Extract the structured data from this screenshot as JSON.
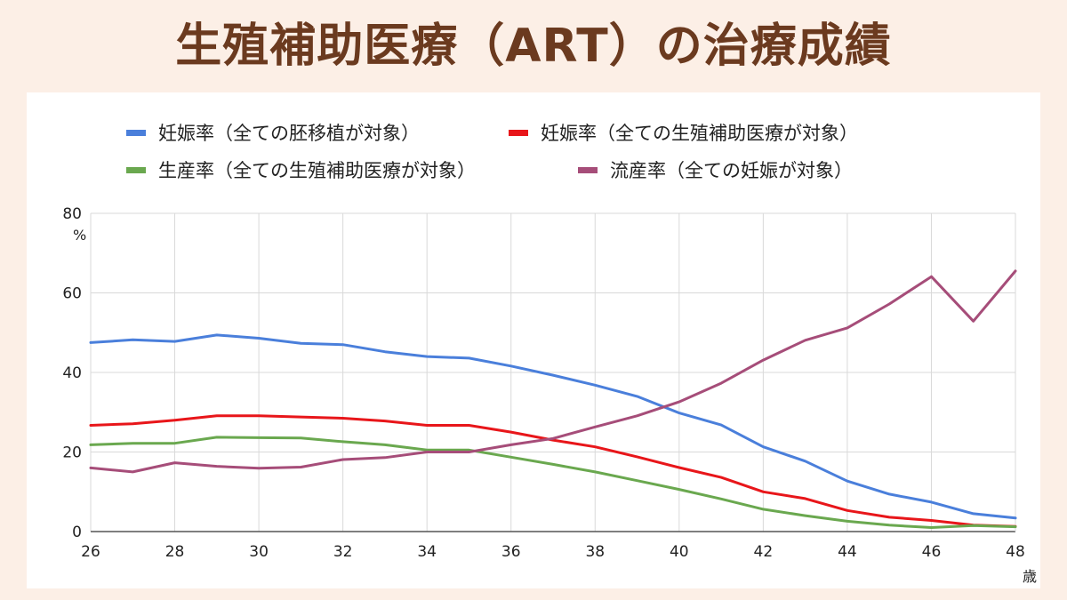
{
  "title": "生殖補助医療（ART）の治療成績",
  "chart_data": {
    "type": "line",
    "x": [
      26,
      27,
      28,
      29,
      30,
      31,
      32,
      33,
      34,
      35,
      36,
      37,
      38,
      39,
      40,
      41,
      42,
      43,
      44,
      45,
      46,
      47,
      48
    ],
    "xticks": [
      "26",
      "28",
      "30",
      "32",
      "34",
      "36",
      "38",
      "40",
      "42",
      "44",
      "46",
      "48"
    ],
    "xlabel": "歳",
    "ylabel": "%",
    "yticks": [
      "0",
      "20",
      "40",
      "60",
      "80"
    ],
    "xlim": [
      26,
      48
    ],
    "ylim": [
      0,
      80
    ],
    "grid": true,
    "legend_position": "top",
    "series": [
      {
        "name": "妊娠率（全ての胚移植が対象）",
        "color": "#4a7fdb",
        "values": [
          47.5,
          48.2,
          47.8,
          49.4,
          48.6,
          47.3,
          47.0,
          45.2,
          44.0,
          43.6,
          41.6,
          39.3,
          36.8,
          34.0,
          29.8,
          26.8,
          21.3,
          17.7,
          12.7,
          9.4,
          7.4,
          4.5,
          3.4
        ]
      },
      {
        "name": "妊娠率（全ての生殖補助医療が対象）",
        "color": "#e8161a",
        "values": [
          26.7,
          27.1,
          28.0,
          29.1,
          29.1,
          28.8,
          28.5,
          27.8,
          26.7,
          26.7,
          25.0,
          23.0,
          21.3,
          18.8,
          16.1,
          13.6,
          10.0,
          8.3,
          5.3,
          3.6,
          2.8,
          1.6,
          1.3
        ]
      },
      {
        "name": "生産率（全ての生殖補助医療が対象）",
        "color": "#6aa84f",
        "values": [
          21.8,
          22.2,
          22.2,
          23.7,
          23.6,
          23.5,
          22.6,
          21.8,
          20.5,
          20.5,
          18.7,
          16.9,
          15.0,
          12.8,
          10.6,
          8.2,
          5.6,
          4.0,
          2.6,
          1.6,
          1.0,
          1.5,
          1.2
        ]
      },
      {
        "name": "流産率（全ての妊娠が対象）",
        "color": "#a64d79",
        "values": [
          16.0,
          15.0,
          17.3,
          16.4,
          15.9,
          16.2,
          18.1,
          18.6,
          20.0,
          20.0,
          21.8,
          23.4,
          26.3,
          29.1,
          32.6,
          37.3,
          43.1,
          48.1,
          51.2,
          57.2,
          64.1,
          52.9,
          65.5
        ]
      }
    ]
  }
}
